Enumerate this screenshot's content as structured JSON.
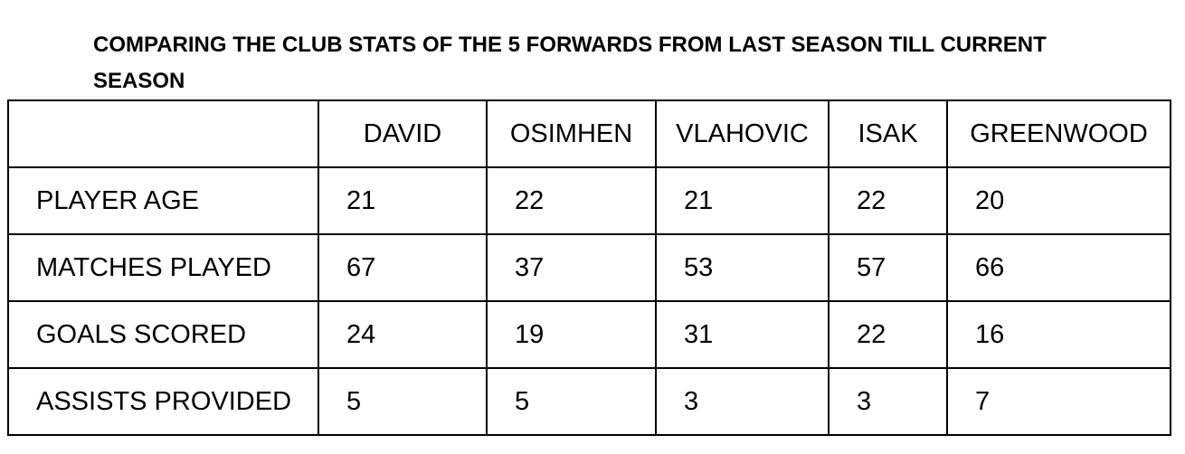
{
  "title": "COMPARING THE CLUB STATS OF THE 5 FORWARDS FROM LAST SEASON TILL CURRENT SEASON",
  "table": {
    "columns": [
      "DAVID",
      "OSIMHEN",
      "VLAHOVIC",
      "ISAK",
      "GREENWOOD"
    ],
    "rows": [
      {
        "label": "PLAYER AGE",
        "values": [
          21,
          22,
          21,
          22,
          20
        ]
      },
      {
        "label": "MATCHES PLAYED",
        "values": [
          67,
          37,
          53,
          57,
          66
        ]
      },
      {
        "label": "GOALS SCORED",
        "values": [
          24,
          19,
          31,
          22,
          16
        ]
      },
      {
        "label": "ASSISTS PROVIDED",
        "values": [
          5,
          5,
          3,
          3,
          7
        ]
      }
    ]
  }
}
